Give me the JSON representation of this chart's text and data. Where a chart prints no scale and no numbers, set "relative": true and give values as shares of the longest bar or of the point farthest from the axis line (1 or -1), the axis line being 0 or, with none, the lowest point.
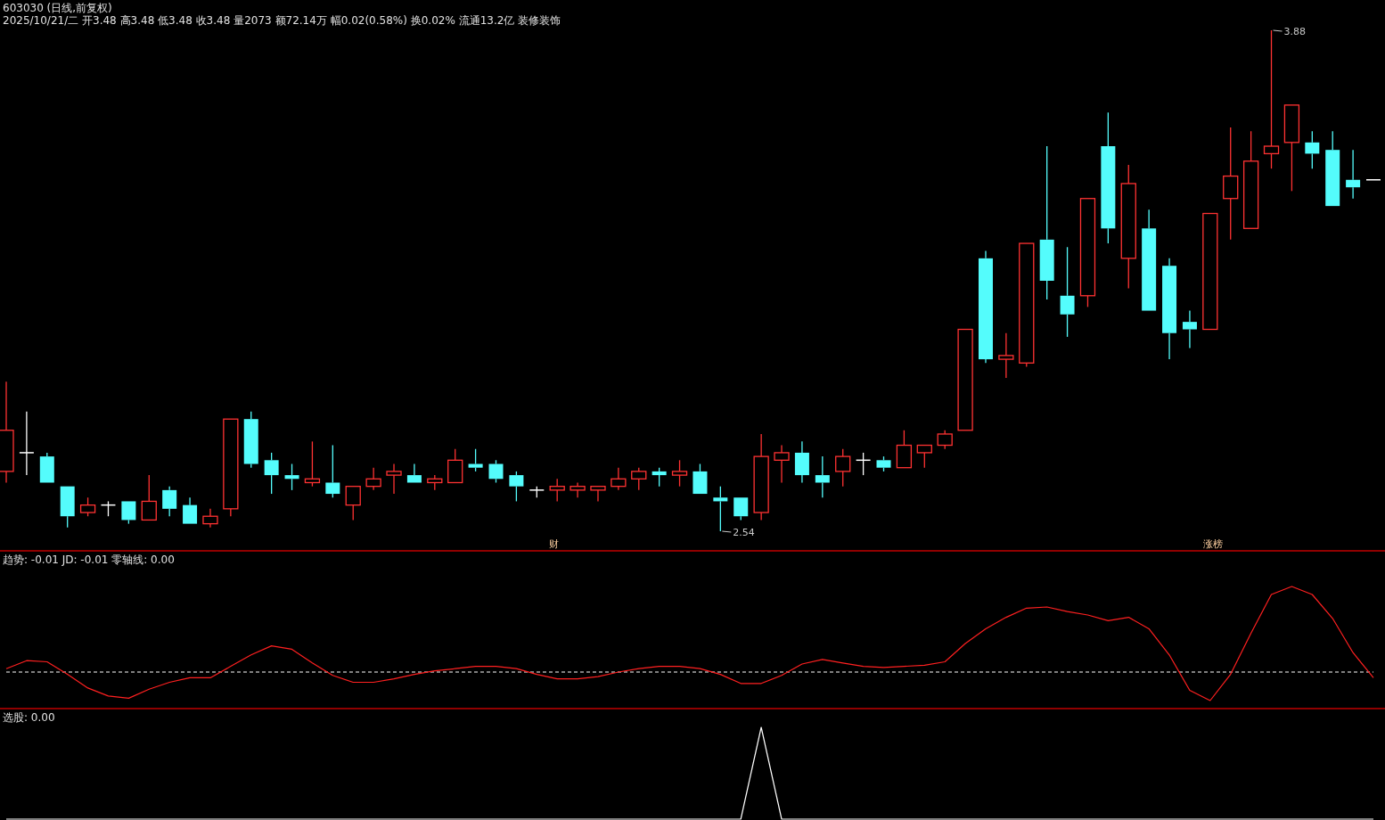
{
  "chart_data": [
    {
      "type": "candlestick",
      "title": "603030 (日线,前复权)",
      "subtitle": "2025/10/21/二 开3.48 高3.48 低3.48 收3.48 量2073 额72.14万 幅0.02(0.58%) 换0.02% 流通13.2亿 装修装饰",
      "categories": [
        null,
        null,
        null,
        null,
        null,
        null,
        null,
        null,
        null,
        null,
        null,
        null,
        null,
        null,
        null,
        null,
        null,
        null,
        null,
        null,
        null,
        null,
        null,
        null,
        null,
        null,
        null,
        null,
        null,
        null,
        null,
        null,
        null,
        null,
        null,
        null,
        null,
        null,
        null,
        null,
        null,
        null,
        null,
        null,
        null,
        null,
        null,
        null,
        null,
        null,
        null,
        null,
        null,
        null,
        null,
        null,
        null,
        null,
        null,
        null,
        null,
        null,
        null,
        null,
        null,
        null,
        null,
        null
      ],
      "ohlc": [
        [
          2.7,
          2.94,
          2.67,
          2.81
        ],
        [
          2.75,
          2.86,
          2.69,
          2.75
        ],
        [
          2.74,
          2.75,
          2.67,
          2.67
        ],
        [
          2.66,
          2.66,
          2.55,
          2.58
        ],
        [
          2.59,
          2.63,
          2.58,
          2.61
        ],
        [
          2.61,
          2.62,
          2.58,
          2.61
        ],
        [
          2.62,
          2.62,
          2.56,
          2.57
        ],
        [
          2.57,
          2.69,
          2.57,
          2.62
        ],
        [
          2.65,
          2.66,
          2.58,
          2.6
        ],
        [
          2.61,
          2.63,
          2.56,
          2.56
        ],
        [
          2.56,
          2.6,
          2.55,
          2.58
        ],
        [
          2.6,
          2.84,
          2.58,
          2.84
        ],
        [
          2.84,
          2.86,
          2.71,
          2.72
        ],
        [
          2.73,
          2.75,
          2.64,
          2.69
        ],
        [
          2.69,
          2.72,
          2.65,
          2.68
        ],
        [
          2.67,
          2.78,
          2.66,
          2.68
        ],
        [
          2.67,
          2.77,
          2.63,
          2.64
        ],
        [
          2.61,
          2.66,
          2.57,
          2.66
        ],
        [
          2.66,
          2.71,
          2.65,
          2.68
        ],
        [
          2.69,
          2.72,
          2.64,
          2.7
        ],
        [
          2.69,
          2.72,
          2.67,
          2.67
        ],
        [
          2.67,
          2.69,
          2.65,
          2.68
        ],
        [
          2.67,
          2.76,
          2.67,
          2.73
        ],
        [
          2.72,
          2.76,
          2.7,
          2.71
        ],
        [
          2.72,
          2.73,
          2.67,
          2.68
        ],
        [
          2.69,
          2.7,
          2.62,
          2.66
        ],
        [
          2.65,
          2.66,
          2.63,
          2.65
        ],
        [
          2.65,
          2.68,
          2.62,
          2.66
        ],
        [
          2.65,
          2.67,
          2.63,
          2.66
        ],
        [
          2.65,
          2.66,
          2.62,
          2.66
        ],
        [
          2.66,
          2.71,
          2.65,
          2.68
        ],
        [
          2.68,
          2.71,
          2.65,
          2.7
        ],
        [
          2.7,
          2.71,
          2.66,
          2.69
        ],
        [
          2.69,
          2.73,
          2.66,
          2.7
        ],
        [
          2.7,
          2.72,
          2.64,
          2.64
        ],
        [
          2.63,
          2.66,
          2.54,
          2.62
        ],
        [
          2.63,
          2.63,
          2.57,
          2.58
        ],
        [
          2.59,
          2.8,
          2.57,
          2.74
        ],
        [
          2.73,
          2.77,
          2.67,
          2.75
        ],
        [
          2.75,
          2.78,
          2.67,
          2.69
        ],
        [
          2.69,
          2.74,
          2.63,
          2.67
        ],
        [
          2.7,
          2.76,
          2.66,
          2.74
        ],
        [
          2.73,
          2.75,
          2.69,
          2.73
        ],
        [
          2.73,
          2.74,
          2.7,
          2.71
        ],
        [
          2.71,
          2.81,
          2.71,
          2.77
        ],
        [
          2.75,
          2.77,
          2.71,
          2.77
        ],
        [
          2.77,
          2.81,
          2.76,
          2.8
        ],
        [
          2.81,
          3.08,
          2.81,
          3.08
        ],
        [
          3.27,
          3.29,
          2.99,
          3.0
        ],
        [
          3.0,
          3.07,
          2.95,
          3.01
        ],
        [
          2.99,
          3.31,
          2.98,
          3.31
        ],
        [
          3.32,
          3.57,
          3.16,
          3.21
        ],
        [
          3.17,
          3.3,
          3.06,
          3.12
        ],
        [
          3.17,
          3.43,
          3.14,
          3.43
        ],
        [
          3.57,
          3.66,
          3.31,
          3.35
        ],
        [
          3.27,
          3.52,
          3.19,
          3.47
        ],
        [
          3.35,
          3.4,
          3.13,
          3.13
        ],
        [
          3.25,
          3.27,
          3.0,
          3.07
        ],
        [
          3.1,
          3.13,
          3.03,
          3.08
        ],
        [
          3.08,
          3.39,
          3.08,
          3.39
        ],
        [
          3.43,
          3.62,
          3.32,
          3.49
        ],
        [
          3.35,
          3.61,
          3.35,
          3.53
        ],
        [
          3.55,
          3.88,
          3.51,
          3.57
        ],
        [
          3.58,
          3.68,
          3.45,
          3.68
        ],
        [
          3.58,
          3.61,
          3.51,
          3.55
        ],
        [
          3.56,
          3.61,
          3.41,
          3.41
        ],
        [
          3.48,
          3.56,
          3.43,
          3.46
        ],
        [
          3.48,
          3.48,
          3.48,
          3.48
        ]
      ],
      "colors": [
        "#ff3232",
        "#ffffff",
        "#54fcfc",
        "#54fcfc",
        "#ff3232",
        "#ffffff",
        "#54fcfc",
        "#ff3232",
        "#54fcfc",
        "#54fcfc",
        "#ff3232",
        "#ff3232",
        "#54fcfc",
        "#54fcfc",
        "#54fcfc",
        "#ff3232",
        "#54fcfc",
        "#ff3232",
        "#ff3232",
        "#ff3232",
        "#54fcfc",
        "#ff3232",
        "#ff3232",
        "#54fcfc",
        "#54fcfc",
        "#54fcfc",
        "#ffffff",
        "#ff3232",
        "#ff3232",
        "#ff3232",
        "#ff3232",
        "#ff3232",
        "#54fcfc",
        "#ff3232",
        "#54fcfc",
        "#54fcfc",
        "#54fcfc",
        "#ff3232",
        "#ff3232",
        "#54fcfc",
        "#54fcfc",
        "#ff3232",
        "#ffffff",
        "#54fcfc",
        "#ff3232",
        "#ff3232",
        "#ff3232",
        "#ff3232",
        "#54fcfc",
        "#ff3232",
        "#ff3232",
        "#54fcfc",
        "#54fcfc",
        "#ff3232",
        "#54fcfc",
        "#ff3232",
        "#54fcfc",
        "#54fcfc",
        "#54fcfc",
        "#ff3232",
        "#ff3232",
        "#ff3232",
        "#ff3232",
        "#ff3232",
        "#54fcfc",
        "#54fcfc",
        "#54fcfc",
        "#ffffff"
      ],
      "annotations": [
        "2.54",
        "3.88",
        "财",
        "涨榜"
      ]
    },
    {
      "type": "line",
      "title": "趋势: -0.01  JD: -0.01  零轴线: 0.00",
      "relative": true,
      "categories": [
        null,
        null,
        null,
        null,
        null,
        null,
        null,
        null,
        null,
        null,
        null,
        null,
        null,
        null,
        null,
        null,
        null,
        null,
        null,
        null,
        null,
        null,
        null,
        null,
        null,
        null,
        null,
        null,
        null,
        null,
        null,
        null,
        null,
        null,
        null,
        null,
        null,
        null,
        null,
        null,
        null,
        null,
        null,
        null,
        null,
        null,
        null,
        null,
        null,
        null,
        null,
        null,
        null,
        null,
        null,
        null,
        null,
        null,
        null,
        null,
        null,
        null,
        null,
        null,
        null,
        null,
        null,
        null
      ],
      "series": [
        {
          "type": "line",
          "color": "#ff2020",
          "values": [
            0.28,
            0.35,
            0.34,
            0.23,
            0.11,
            0.04,
            0.02,
            0.1,
            0.16,
            0.2,
            0.2,
            0.3,
            0.4,
            0.48,
            0.45,
            0.33,
            0.22,
            0.16,
            0.16,
            0.19,
            0.23,
            0.26,
            0.28,
            0.3,
            0.3,
            0.28,
            0.23,
            0.19,
            0.19,
            0.21,
            0.25,
            0.28,
            0.3,
            0.3,
            0.28,
            0.23,
            0.15,
            0.15,
            0.22,
            0.32,
            0.36,
            0.33,
            0.3,
            0.29,
            0.3,
            0.31,
            0.34,
            0.5,
            0.63,
            0.73,
            0.81,
            0.82,
            0.78,
            0.75,
            0.7,
            0.73,
            0.63,
            0.4,
            0.09,
            0.0,
            0.23,
            0.59,
            0.93,
            1.0,
            0.93,
            0.72,
            0.42,
            0.2
          ]
        }
      ],
      "ref_lines": [
        {
          "axis": "y",
          "value": 0.25,
          "color": "#ffffff",
          "line_style": "dashed"
        }
      ]
    },
    {
      "type": "line",
      "title": "选股: 0.00",
      "relative": true,
      "categories": [
        null,
        null,
        null,
        null,
        null,
        null,
        null,
        null,
        null,
        null,
        null,
        null,
        null,
        null,
        null,
        null,
        null,
        null,
        null,
        null,
        null,
        null,
        null,
        null,
        null,
        null,
        null,
        null,
        null,
        null,
        null,
        null,
        null,
        null,
        null,
        null,
        null,
        null,
        null,
        null,
        null,
        null,
        null,
        null,
        null,
        null,
        null,
        null,
        null,
        null,
        null,
        null,
        null,
        null,
        null,
        null,
        null,
        null,
        null,
        null,
        null,
        null,
        null,
        null,
        null,
        null,
        null,
        null
      ],
      "series": [
        {
          "type": "line",
          "color": "#ffffff",
          "values": [
            0,
            0,
            0,
            0,
            0,
            0,
            0,
            0,
            0,
            0,
            0,
            0,
            0,
            0,
            0,
            0,
            0,
            0,
            0,
            0,
            0,
            0,
            0,
            0,
            0,
            0,
            0,
            0,
            0,
            0,
            0,
            0,
            0,
            0,
            0,
            0,
            0,
            1,
            0,
            0,
            0,
            0,
            0,
            0,
            0,
            0,
            0,
            0,
            0,
            0,
            0,
            0,
            0,
            0,
            0,
            0,
            0,
            0,
            0,
            0,
            0,
            0,
            0,
            0,
            0,
            0,
            0,
            0
          ]
        }
      ]
    }
  ]
}
